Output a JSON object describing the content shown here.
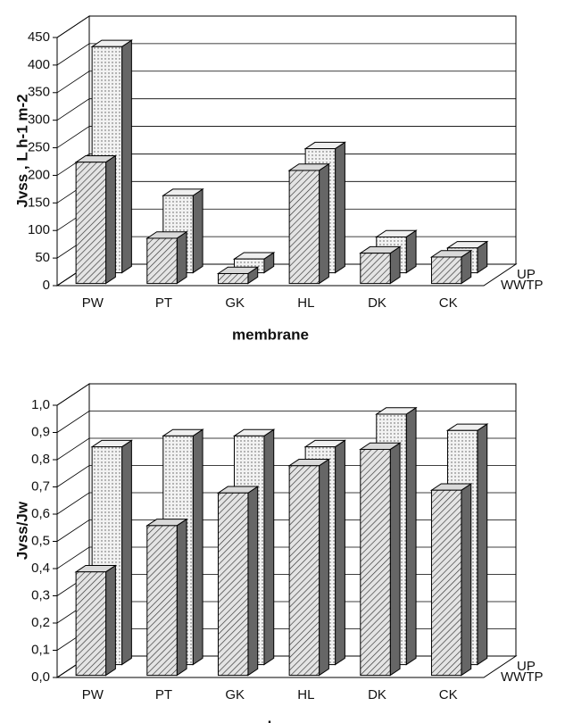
{
  "chart_data": [
    {
      "type": "bar",
      "categories": [
        "PW",
        "PT",
        "GK",
        "HL",
        "DK",
        "CK"
      ],
      "series": [
        {
          "name": "WWTP",
          "color": "#d9d9d9",
          "pattern": "hatch",
          "values": [
            220,
            82,
            18,
            205,
            55,
            48
          ]
        },
        {
          "name": "UP",
          "color": "#efefef",
          "pattern": "dots",
          "values": [
            410,
            140,
            25,
            225,
            65,
            45
          ]
        }
      ],
      "xlabel": "membrane",
      "ylabel": "Jvss , L h-1 m-2",
      "ylim": [
        0,
        450
      ],
      "yticks": [
        0,
        50,
        100,
        150,
        200,
        250,
        300,
        350,
        400,
        450
      ],
      "grid": true
    },
    {
      "type": "bar",
      "categories": [
        "PW",
        "PT",
        "GK",
        "HL",
        "DK",
        "CK"
      ],
      "series": [
        {
          "name": "WWTP",
          "color": "#d9d9d9",
          "pattern": "hatch",
          "values": [
            0.38,
            0.55,
            0.67,
            0.77,
            0.83,
            0.68
          ]
        },
        {
          "name": "UP",
          "color": "#efefef",
          "pattern": "dots",
          "values": [
            0.8,
            0.84,
            0.84,
            0.8,
            0.92,
            0.86
          ]
        }
      ],
      "xlabel": "membrane",
      "ylabel": "Jvss/Jw",
      "ylim": [
        0,
        1
      ],
      "yticks": [
        {
          "value": 0,
          "label": "0,0"
        },
        {
          "value": 0.1,
          "label": "0,1"
        },
        {
          "value": 0.2,
          "label": "0,2"
        },
        {
          "value": 0.3,
          "label": "0,3"
        },
        {
          "value": 0.4,
          "label": "0,4"
        },
        {
          "value": 0.5,
          "label": "0,5"
        },
        {
          "value": 0.6,
          "label": "0,6"
        },
        {
          "value": 0.7,
          "label": "0,7"
        },
        {
          "value": 0.8,
          "label": "0,8"
        },
        {
          "value": 0.9,
          "label": "0,9"
        },
        {
          "value": 1,
          "label": "1,0"
        }
      ],
      "grid": true
    }
  ]
}
